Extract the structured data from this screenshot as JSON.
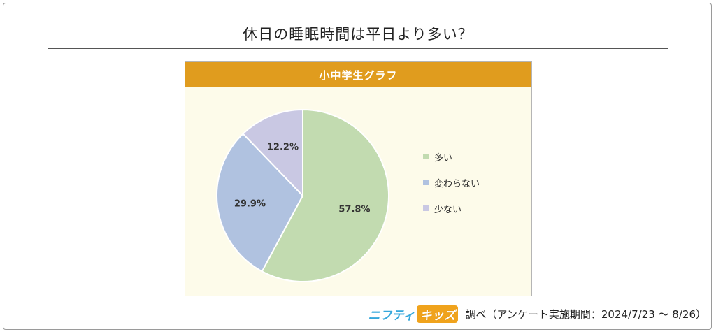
{
  "page": {
    "title": "休日の睡眠時間は平日より多い？"
  },
  "chart_data": {
    "type": "pie",
    "title": "小中学生グラフ",
    "slices": [
      {
        "label": "多い",
        "value": 57.8,
        "display": "57.8%",
        "color": "#c2dbb0"
      },
      {
        "label": "変わらない",
        "value": 29.9,
        "display": "29.9%",
        "color": "#b0c2e0"
      },
      {
        "label": "少ない",
        "value": 12.2,
        "display": "12.2%",
        "color": "#c9c8e3"
      }
    ],
    "legend_position": "right",
    "start": "top, clockwise"
  },
  "footer": {
    "logo_a": "ニフティ",
    "logo_b": "キッズ",
    "text": "調べ（アンケート実施期間：2024/7/23 ～ 8/26）"
  }
}
